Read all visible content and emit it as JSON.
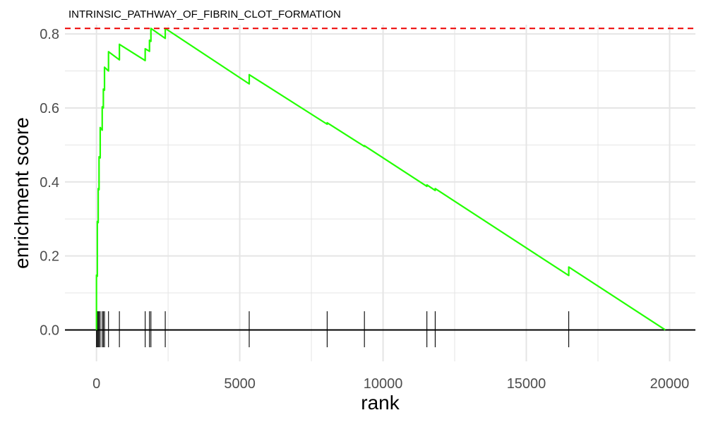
{
  "chart_data": {
    "type": "line",
    "title": "INTRINSIC_PATHWAY_OF_FIBRIN_CLOT_FORMATION",
    "xlabel": "rank",
    "ylabel": "enrichment score",
    "xlim": [
      -1100,
      20900
    ],
    "ylim": [
      -0.085,
      0.825
    ],
    "xticks": [
      0,
      5000,
      10000,
      15000,
      20000
    ],
    "xtick_labels": [
      "0",
      "5000",
      "10000",
      "15000",
      "20000"
    ],
    "yticks": [
      0,
      0.2,
      0.4,
      0.6,
      0.8
    ],
    "ytick_labels": [
      "0.0",
      "0.2",
      "0.4",
      "0.6",
      "0.8"
    ],
    "grid": true,
    "colors": {
      "curve": "#22ff00",
      "max_line": "#ee0000",
      "zero_line": "#000000",
      "ticks": "#000000",
      "grid": "#e5e5e5"
    },
    "max_es": 0.815,
    "series": [
      {
        "x": [
          0,
          0,
          30,
          30,
          60,
          60,
          90,
          90,
          130,
          130,
          200,
          200,
          240,
          240,
          280,
          280,
          420,
          420,
          800,
          800,
          1700,
          1700,
          1850,
          1850,
          1900,
          1900,
          2400,
          2400,
          5330,
          5330,
          8050,
          8050,
          9350,
          9350,
          11530,
          11530,
          11820,
          11820,
          16480,
          16480,
          19850
        ],
        "y": [
          0,
          0.148,
          0.145,
          0.293,
          0.29,
          0.382,
          0.379,
          0.468,
          0.465,
          0.547,
          0.54,
          0.603,
          0.6,
          0.651,
          0.648,
          0.71,
          0.7,
          0.752,
          0.73,
          0.772,
          0.728,
          0.76,
          0.753,
          0.783,
          0.78,
          0.815,
          0.788,
          0.815,
          0.665,
          0.69,
          0.556,
          0.56,
          0.496,
          0.498,
          0.388,
          0.392,
          0.377,
          0.382,
          0.147,
          0.17,
          0.0
        ]
      }
    ],
    "hit_ranks": [
      0,
      30,
      60,
      90,
      130,
      200,
      240,
      280,
      420,
      800,
      1700,
      1850,
      1900,
      2400,
      5330,
      8050,
      9350,
      11530,
      11820,
      16480
    ]
  }
}
